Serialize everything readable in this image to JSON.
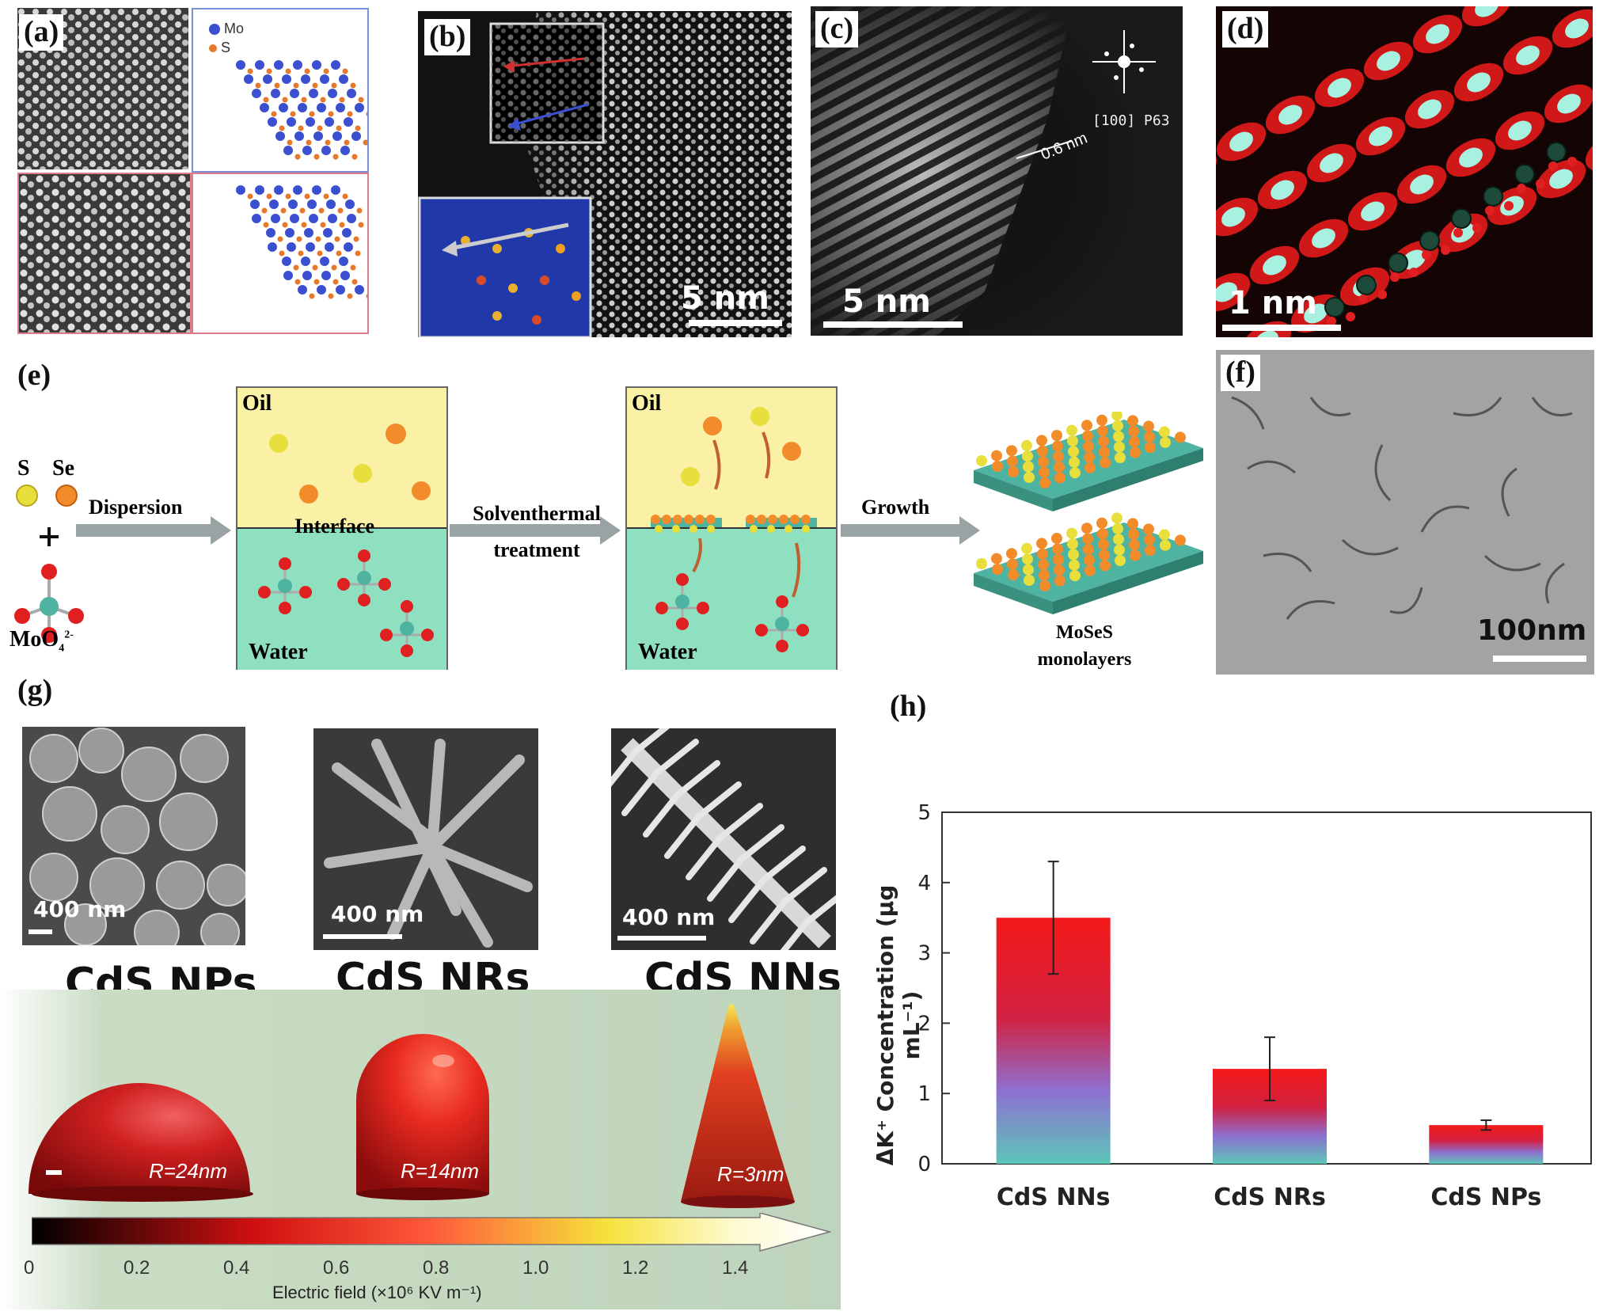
{
  "panel_labels": {
    "a": "(a)",
    "b": "(b)",
    "c": "(c)",
    "d": "(d)",
    "e": "(e)",
    "f": "(f)",
    "g": "(g)",
    "h": "(h)"
  },
  "panel_a": {
    "legend_mo": "Mo",
    "legend_s": "S",
    "mo_color": "#3b4fd1",
    "s_color": "#e8782a"
  },
  "panel_b": {
    "scale": "5 nm"
  },
  "panel_c": {
    "spacing": "0.6 nm",
    "fft_label": "[100] P63",
    "scale": "5 nm"
  },
  "panel_d": {
    "scale": "1 nm"
  },
  "panel_e": {
    "reactant_s": "S",
    "reactant_se": "Se",
    "plus": "+",
    "moo4": "MoO",
    "moo4_sub": "4",
    "moo4_sup": "2-",
    "step1": "Dispersion",
    "step2_line1": "Solventhermal",
    "step2_line2": "treatment",
    "step3": "Growth",
    "oil": "Oil",
    "water": "Water",
    "interface": "Interface",
    "product_line1": "MoSeS",
    "product_line2": "monolayers",
    "oil_color": "#fbf1a6",
    "water_color": "#8fe0c0"
  },
  "panel_f": {
    "scale": "100nm"
  },
  "panel_g": {
    "sem_scales": [
      "400 nm",
      "400 nm",
      "400 nm"
    ],
    "names": [
      "CdS NPs",
      "CdS NRs",
      "CdS NNs"
    ],
    "radii": [
      "R=24nm",
      "R=14nm",
      "R=3nm"
    ],
    "colorbar_ticks": [
      "0",
      "0.2",
      "0.4",
      "0.6",
      "0.8",
      "1.0",
      "1.2",
      "1.4"
    ],
    "colorbar_label": "Electric field  (×10⁶ KV m⁻¹)"
  },
  "chart_data": {
    "type": "bar",
    "categories": [
      "CdS NNs",
      "CdS NRs",
      "CdS NPs"
    ],
    "values": [
      3.5,
      1.35,
      0.55
    ],
    "errors": [
      0.8,
      0.45,
      0.07
    ],
    "ylabel": "ΔK⁺ Concentration (μg mL⁻¹)",
    "ylim": [
      0,
      5
    ],
    "yticks": [
      "0",
      "1",
      "2",
      "3",
      "4",
      "5"
    ]
  }
}
